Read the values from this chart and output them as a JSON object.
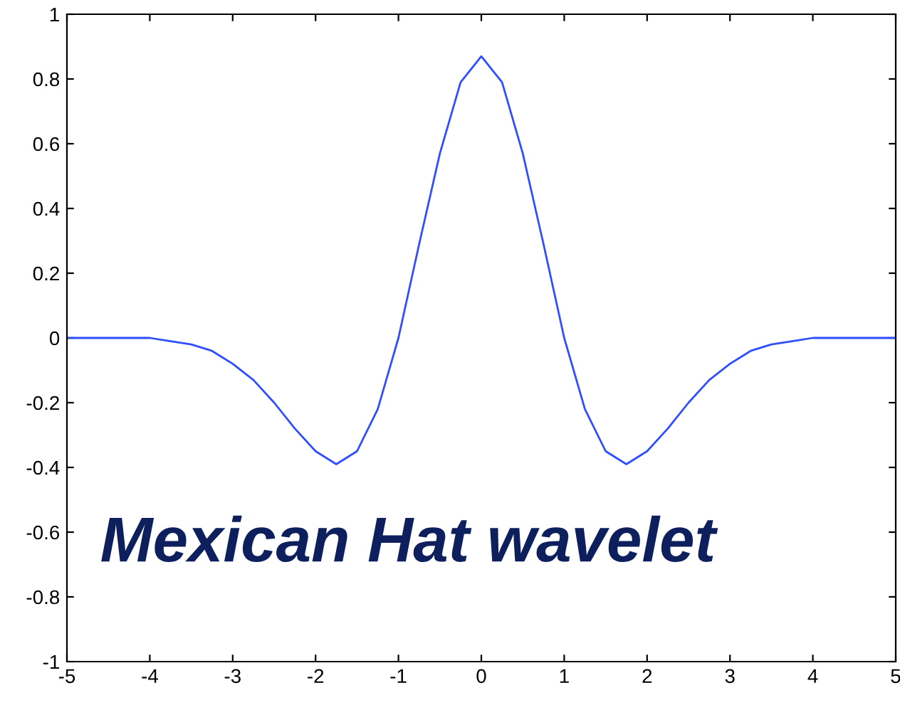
{
  "chart_data": {
    "type": "line",
    "x": [
      -5,
      -4.75,
      -4.5,
      -4.25,
      -4,
      -3.75,
      -3.5,
      -3.25,
      -3,
      -2.75,
      -2.5,
      -2.25,
      -2,
      -1.75,
      -1.5,
      -1.25,
      -1,
      -0.75,
      -0.5,
      -0.25,
      0,
      0.25,
      0.5,
      0.75,
      1,
      1.25,
      1.5,
      1.75,
      2,
      2.25,
      2.5,
      2.75,
      3,
      3.25,
      3.5,
      3.75,
      4,
      4.25,
      4.5,
      4.75,
      5
    ],
    "series": [
      {
        "color": "#2f4fff",
        "values": [
          0,
          0,
          0,
          0,
          0,
          -0.01,
          -0.02,
          -0.04,
          -0.08,
          -0.13,
          -0.2,
          -0.28,
          -0.35,
          -0.39,
          -0.35,
          -0.22,
          0,
          0.29,
          0.57,
          0.79,
          0.87,
          0.79,
          0.57,
          0.29,
          0,
          -0.22,
          -0.35,
          -0.39,
          -0.35,
          -0.28,
          -0.2,
          -0.13,
          -0.08,
          -0.04,
          -0.02,
          -0.01,
          0,
          0,
          0,
          0,
          0
        ]
      }
    ],
    "xlim": [
      -5,
      5
    ],
    "ylim": [
      -1,
      1
    ],
    "xticks": [
      -5,
      -4,
      -3,
      -2,
      -1,
      0,
      1,
      2,
      3,
      4,
      5
    ],
    "yticks": [
      -1,
      -0.8,
      -0.6,
      -0.4,
      -0.2,
      0,
      0.2,
      0.4,
      0.6,
      0.8,
      1
    ],
    "annotations": [
      "Mexican Hat wavelet"
    ],
    "grid": false,
    "legend": false,
    "marker": "none",
    "line_style": "solid"
  }
}
